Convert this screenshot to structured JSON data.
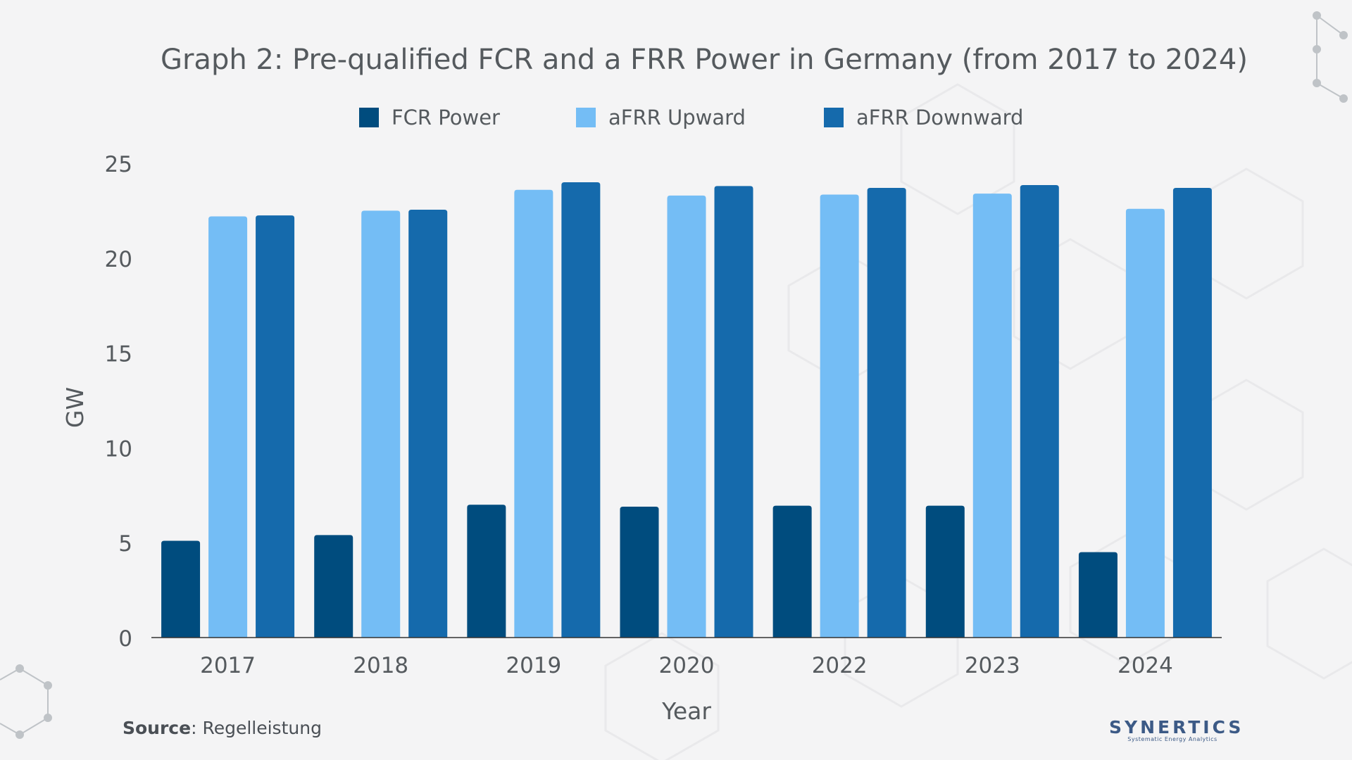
{
  "title": "Graph 2: Pre-qualified FCR and a FRR Power in Germany (from 2017 to 2024)",
  "source": {
    "label": "Source",
    "text": ": Regelleistung"
  },
  "logo": {
    "name": "SYNERTICS",
    "tagline": "Systematic Energy Analytics"
  },
  "colors": {
    "fcr": "#004c7e",
    "afrr_up": "#74bdf5",
    "afrr_down": "#156aac",
    "text": "#555a5e",
    "background": "#f4f4f5"
  },
  "chart_data": {
    "type": "bar",
    "title": "Graph 2: Pre-qualified FCR and a FRR Power in Germany (from 2017 to 2024)",
    "xlabel": "Year",
    "ylabel": "GW",
    "categories": [
      "2017",
      "2018",
      "2019",
      "2020",
      "2022",
      "2023",
      "2024"
    ],
    "ylim": [
      0,
      25
    ],
    "yticks": [
      0,
      5,
      10,
      15,
      20,
      25
    ],
    "grid": false,
    "legend_position": "top-center",
    "series": [
      {
        "name": "FCR Power",
        "color": "#004c7e",
        "values": [
          5.1,
          5.4,
          7.0,
          6.9,
          6.95,
          6.95,
          4.5
        ]
      },
      {
        "name": "aFRR Upward",
        "color": "#74bdf5",
        "values": [
          22.2,
          22.5,
          23.6,
          23.3,
          23.35,
          23.4,
          22.6
        ]
      },
      {
        "name": "aFRR Downward",
        "color": "#156aac",
        "values": [
          22.25,
          22.55,
          24.0,
          23.8,
          23.7,
          23.85,
          23.7
        ]
      }
    ]
  }
}
